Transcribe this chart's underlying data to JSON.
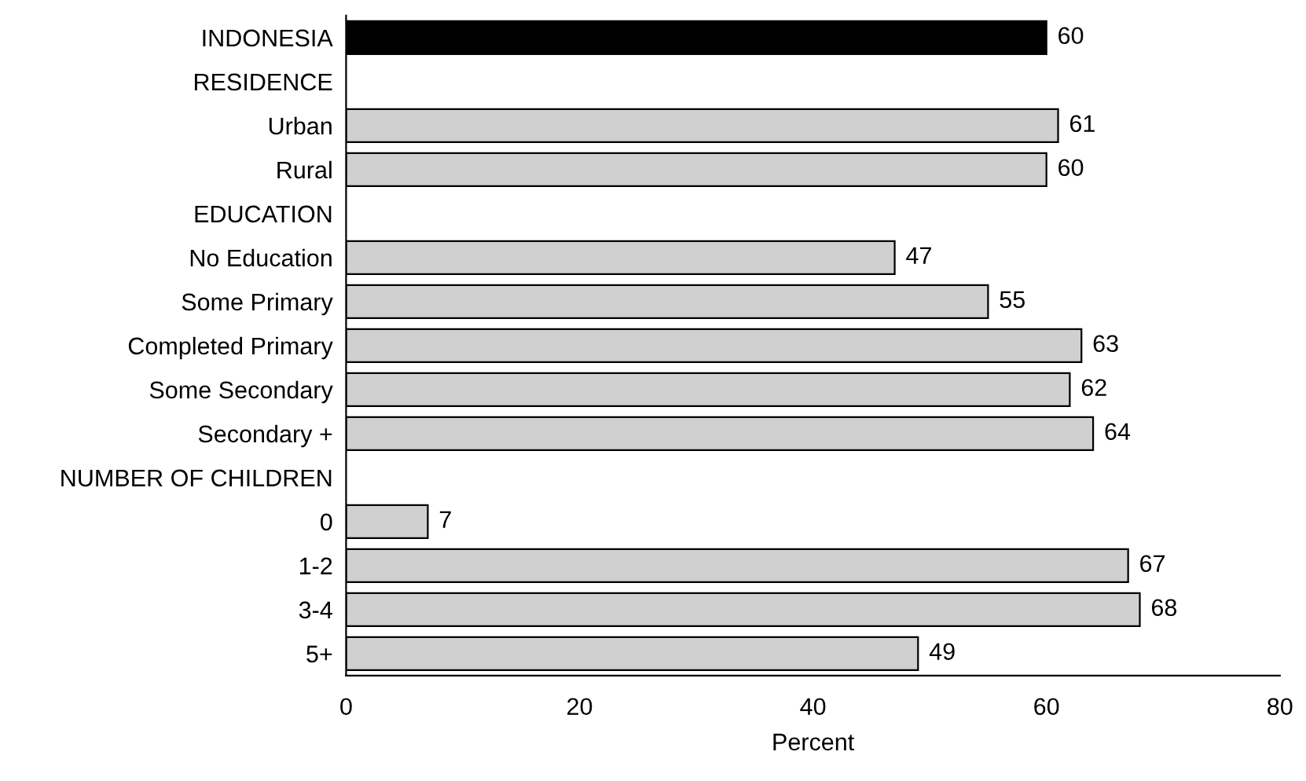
{
  "chart_data": {
    "type": "bar",
    "orientation": "horizontal",
    "xlabel": "Percent",
    "categories": [
      "INDONESIA",
      "RESIDENCE",
      "Urban",
      "Rural",
      "EDUCATION",
      "No Education",
      "Some Primary",
      "Completed Primary",
      "Some Secondary",
      "Secondary +",
      "NUMBER OF CHILDREN",
      "0",
      "1-2",
      "3-4",
      "5+"
    ],
    "values": [
      60,
      null,
      61,
      60,
      null,
      47,
      55,
      63,
      62,
      64,
      null,
      7,
      67,
      68,
      49
    ],
    "colors": [
      "#000000",
      null,
      "#d0d0d0",
      "#d0d0d0",
      null,
      "#d0d0d0",
      "#d0d0d0",
      "#d0d0d0",
      "#d0d0d0",
      "#d0d0d0",
      null,
      "#d0d0d0",
      "#d0d0d0",
      "#d0d0d0",
      "#d0d0d0"
    ],
    "xlim": [
      0,
      80
    ],
    "xticks": [
      0,
      20,
      40,
      60,
      80
    ],
    "data_labels": true,
    "grid": false
  }
}
